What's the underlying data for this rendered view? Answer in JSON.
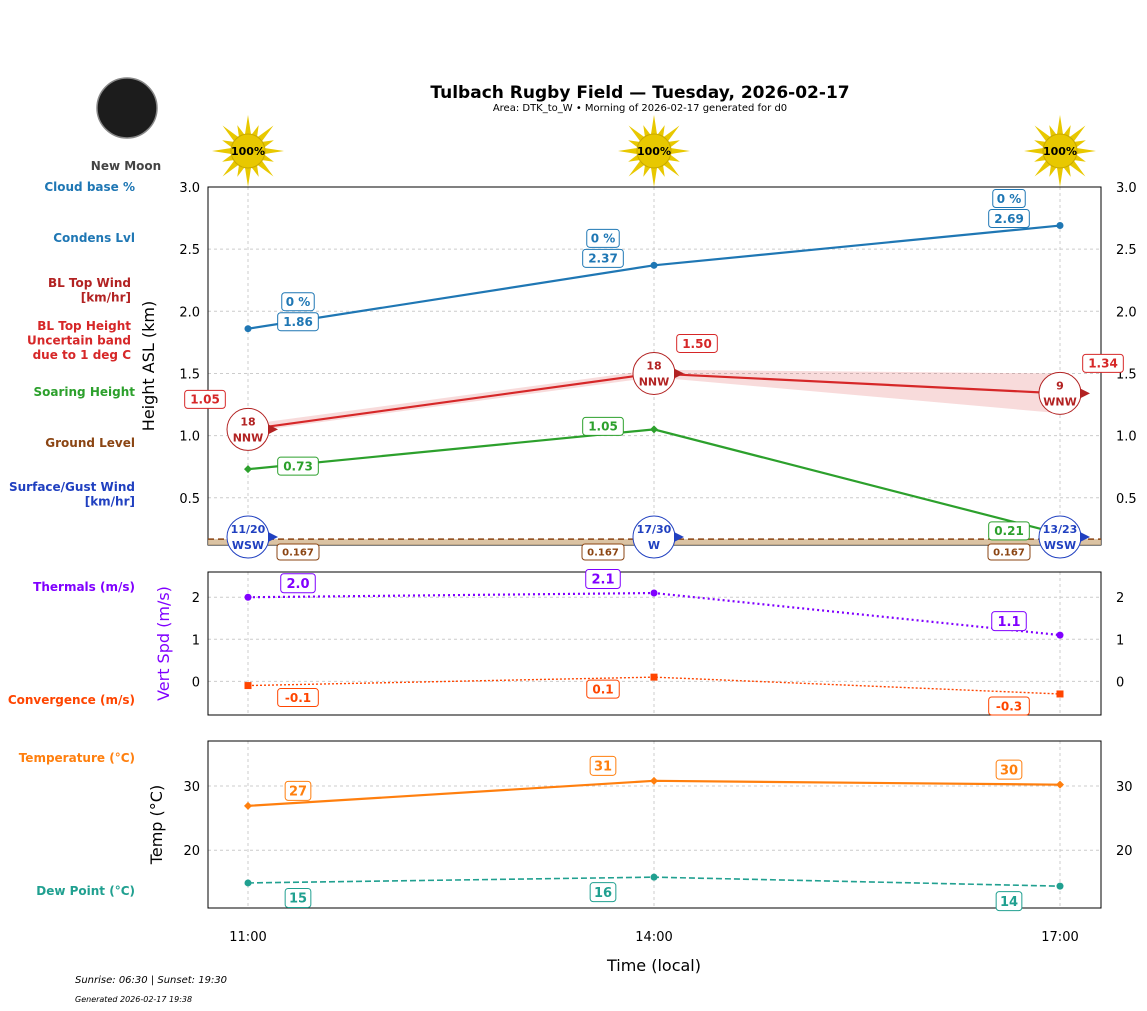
{
  "header": {
    "title": "Tulbach Rugby Field — Tuesday, 2026-02-17",
    "subtitle": "Area: DTK_to_W • Morning of 2026-02-17 generated for d0",
    "moon_phase": "New Moon",
    "sun_cover": [
      "100%",
      "100%",
      "100%"
    ]
  },
  "footer": {
    "sun_times": "Sunrise: 06:30 | Sunset: 19:30",
    "generated": "Generated 2026-02-17 19:38"
  },
  "row_labels": {
    "cloud_base": "Cloud base %",
    "condens": "Condens Lvl",
    "bl_wind": [
      "BL Top Wind",
      "[km/hr]"
    ],
    "bl_height": [
      "BL Top Height",
      "Uncertain band",
      "due to 1 deg C"
    ],
    "soaring": "Soaring Height",
    "ground": "Ground Level",
    "surface_wind": [
      "Surface/Gust Wind",
      "[km/hr]"
    ],
    "thermals": "Thermals (m/s)",
    "convergence": "Convergence (m/s)",
    "temperature": "Temperature (°C)",
    "dew_point": "Dew Point (°C)"
  },
  "colors": {
    "condens": "#1f77b4",
    "bl_top": "#d62728",
    "bl_wind": "#b22222",
    "soaring": "#2ca02c",
    "ground": "#8b4513",
    "surface_wind": "#2040c0",
    "thermals": "#8000ff",
    "convergence": "#ff4500",
    "temperature": "#ff7f0e",
    "dew_point": "#20a090",
    "sun": "#e8c800"
  },
  "chart_data": [
    {
      "type": "line",
      "ylabel": "Height ASL (km)",
      "ylim": [
        0.12,
        3.0
      ],
      "yticks": [
        0.5,
        1.0,
        1.5,
        2.0,
        2.5,
        3.0
      ],
      "ytick_labels": [
        "0.5",
        "1.0",
        "1.5",
        "2.0",
        "2.5",
        "3.0"
      ],
      "x": [
        "11:00",
        "14:00",
        "17:00"
      ],
      "grid": true,
      "series": [
        {
          "key": "condens",
          "values": [
            1.86,
            2.37,
            2.69
          ],
          "labels": [
            "1.86",
            "2.37",
            "2.69"
          ],
          "cloud_base_pct": [
            "0 %",
            "0 %",
            "0 %"
          ]
        },
        {
          "key": "bl_top",
          "values": [
            1.05,
            1.5,
            1.34
          ],
          "labels": [
            "1.05",
            "1.50",
            "1.34"
          ],
          "band_low": [
            1.03,
            1.47,
            1.18
          ],
          "band_high": [
            1.09,
            1.53,
            1.5
          ]
        },
        {
          "key": "soaring",
          "values": [
            0.73,
            1.05,
            0.21
          ],
          "labels": [
            "0.73",
            "1.05",
            "0.21"
          ]
        },
        {
          "key": "ground",
          "values": [
            0.167,
            0.167,
            0.167
          ],
          "labels": [
            "0.167",
            "0.167",
            "0.167"
          ]
        }
      ],
      "bl_wind": [
        {
          "speed": "18",
          "dir": "NNW"
        },
        {
          "speed": "18",
          "dir": "NNW"
        },
        {
          "speed": "9",
          "dir": "WNW"
        }
      ],
      "surface_wind": [
        {
          "speed": "11/20",
          "dir": "WSW"
        },
        {
          "speed": "17/30",
          "dir": "W"
        },
        {
          "speed": "13/23",
          "dir": "WSW"
        }
      ]
    },
    {
      "type": "line",
      "ylabel": "Vert Spd (m/s)",
      "ylim": [
        -0.8,
        2.6
      ],
      "yticks": [
        0,
        1,
        2
      ],
      "ytick_labels": [
        "0",
        "1",
        "2"
      ],
      "grid": true,
      "series": [
        {
          "key": "thermals",
          "values": [
            2.0,
            2.1,
            1.1
          ],
          "labels": [
            "2.0",
            "2.1",
            "1.1"
          ]
        },
        {
          "key": "convergence",
          "values": [
            -0.1,
            0.1,
            -0.3
          ],
          "labels": [
            "-0.1",
            "0.1",
            "-0.3"
          ]
        }
      ]
    },
    {
      "type": "line",
      "ylabel": "Temp (°C)",
      "xlabel": "Time (local)",
      "ylim": [
        11,
        37
      ],
      "yticks": [
        20,
        30
      ],
      "ytick_labels": [
        "20",
        "30"
      ],
      "xtick_labels": [
        "11:00",
        "14:00",
        "17:00"
      ],
      "grid": true,
      "series": [
        {
          "key": "temperature",
          "values": [
            26.9,
            30.8,
            30.2
          ],
          "labels": [
            "27",
            "31",
            "30"
          ]
        },
        {
          "key": "dew_point",
          "values": [
            14.9,
            15.8,
            14.4
          ],
          "labels": [
            "15",
            "16",
            "14"
          ]
        }
      ]
    }
  ]
}
